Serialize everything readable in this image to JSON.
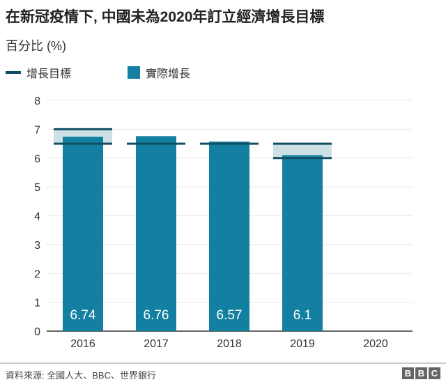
{
  "title": "在新冠疫情下, 中國未為2020年訂立經濟增長目標",
  "subtitle": "百分比 (%)",
  "legend": {
    "target": "增長目標",
    "actual": "實際增長"
  },
  "colors": {
    "bar": "#1380a1",
    "target_line": "#0f4e63",
    "target_band": "#cfe0e4",
    "grid": "#e8e8e8"
  },
  "chart_data": {
    "type": "bar",
    "title": "在新冠疫情下, 中國未為2020年訂立經濟增長目標",
    "ylabel": "百分比 (%)",
    "ylim": [
      0,
      8
    ],
    "yticks": [
      0,
      1,
      2,
      3,
      4,
      5,
      6,
      7,
      8
    ],
    "categories": [
      "2016",
      "2017",
      "2018",
      "2019",
      "2020"
    ],
    "series": [
      {
        "name": "實際增長",
        "values": [
          6.74,
          6.76,
          6.57,
          6.1,
          null
        ],
        "labels": [
          "6.74",
          "6.76",
          "6.57",
          "6.1",
          ""
        ]
      },
      {
        "name": "增長目標",
        "ranges": [
          [
            6.5,
            7.0
          ],
          [
            6.5,
            6.5
          ],
          [
            6.5,
            6.5
          ],
          [
            6.0,
            6.5
          ],
          null
        ]
      }
    ],
    "grid": true,
    "legend": "top-left"
  },
  "footer": {
    "source": "資料來源: 全國人大、BBC、世界銀行",
    "logo": [
      "B",
      "B",
      "C"
    ]
  }
}
